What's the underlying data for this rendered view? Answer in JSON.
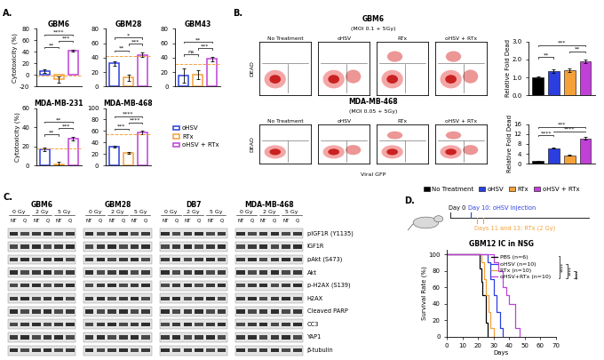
{
  "panel_labels": [
    "A.",
    "B.",
    "C.",
    "D."
  ],
  "chart_data": [
    {
      "type": "bar",
      "title": "GBM6",
      "ylabel": "Cytotoxicity (%)",
      "categories": [
        null,
        null,
        null
      ],
      "values": [
        7,
        -8,
        42
      ],
      "errors": [
        3,
        5,
        2
      ],
      "colors": [
        "#2b3fe0",
        "#f4a13a",
        "#c040d8"
      ],
      "ylim": [
        -20,
        80
      ],
      "yticks": [
        -20,
        0,
        20,
        40,
        60,
        80
      ],
      "reference_line": -1,
      "tick_labels": "y",
      "significance": [
        {
          "pair": [
            0,
            1
          ],
          "label": "**"
        },
        {
          "pair": [
            1,
            2
          ],
          "label": "***"
        },
        {
          "pair": [
            0,
            2
          ],
          "label": "****"
        }
      ]
    },
    {
      "type": "bar",
      "title": "GBM28",
      "categories": [
        null,
        null,
        null
      ],
      "values": [
        32,
        12,
        44
      ],
      "errors": [
        3,
        4,
        3
      ],
      "colors": [
        "#2b3fe0",
        "#f4a13a",
        "#c040d8"
      ],
      "ylim": [
        0,
        80
      ],
      "yticks": [
        0,
        20,
        40,
        60,
        80
      ],
      "reference_line": 42,
      "tick_labels": "y",
      "significance": [
        {
          "pair": [
            0,
            1
          ],
          "label": "**"
        },
        {
          "pair": [
            1,
            2
          ],
          "label": "***"
        },
        {
          "pair": [
            0,
            2
          ],
          "label": "*"
        }
      ]
    },
    {
      "type": "bar",
      "title": "GBM43",
      "categories": [
        null,
        null,
        null
      ],
      "values": [
        15,
        16,
        38
      ],
      "errors": [
        10,
        6,
        3
      ],
      "colors": [
        "#2b3fe0",
        "#f4a13a",
        "#c040d8"
      ],
      "ylim": [
        0,
        80
      ],
      "yticks": [
        0,
        20,
        40,
        60,
        80
      ],
      "reference_line": 31,
      "tick_labels": "y",
      "significance": [
        {
          "pair": [
            0,
            1
          ],
          "label": "ns"
        },
        {
          "pair": [
            1,
            2
          ],
          "label": "***"
        },
        {
          "pair": [
            0,
            2
          ],
          "label": "**"
        }
      ]
    },
    {
      "type": "bar",
      "title": "MDA-MB-231",
      "ylabel": "Cytotoxicity (%)",
      "categories": [
        null,
        null,
        null
      ],
      "values": [
        17,
        1,
        28
      ],
      "errors": [
        2,
        3,
        2
      ],
      "colors": [
        "#2b3fe0",
        "#f4a13a",
        "#c040d8"
      ],
      "ylim": [
        0,
        60
      ],
      "yticks": [
        0,
        20,
        40,
        60
      ],
      "reference_line": 18,
      "tick_labels": "y",
      "significance": [
        {
          "pair": [
            0,
            1
          ],
          "label": "**"
        },
        {
          "pair": [
            1,
            2
          ],
          "label": "***"
        },
        {
          "pair": [
            0,
            2
          ],
          "label": "**"
        }
      ]
    },
    {
      "type": "bar",
      "title": "MDA-MB-468",
      "categories": [
        null,
        null,
        null
      ],
      "values": [
        33,
        22,
        57
      ],
      "errors": [
        2,
        2,
        3
      ],
      "colors": [
        "#2b3fe0",
        "#f4a13a",
        "#c040d8"
      ],
      "ylim": [
        0,
        100
      ],
      "yticks": [
        0,
        20,
        40,
        60,
        80,
        100
      ],
      "reference_line": 55,
      "tick_labels": "y",
      "significance": [
        {
          "pair": [
            0,
            1
          ],
          "label": "***"
        },
        {
          "pair": [
            1,
            2
          ],
          "label": "****"
        },
        {
          "pair": [
            0,
            2
          ],
          "label": "****"
        }
      ]
    },
    {
      "type": "bar",
      "ylabel": "Relative Fold Dead",
      "categories": [
        null,
        null,
        null,
        null
      ],
      "values": [
        1.0,
        1.35,
        1.4,
        1.9
      ],
      "errors": [
        0.05,
        0.1,
        0.08,
        0.1
      ],
      "colors": [
        "#000000",
        "#2b3fe0",
        "#f4a13a",
        "#c040d8"
      ],
      "ylim": [
        0.0,
        3.0
      ],
      "yticks": [
        0.0,
        1.0,
        2.0,
        3.0
      ],
      "tick_labels": "y",
      "significance": [
        {
          "pair": [
            0,
            1
          ],
          "label": "**"
        },
        {
          "pair": [
            2,
            3
          ],
          "label": "**"
        },
        {
          "pair": [
            0,
            3
          ],
          "label": "***"
        }
      ]
    },
    {
      "type": "bar",
      "ylabel": "Relative Fold Dead",
      "categories": [
        null,
        null,
        null,
        null
      ],
      "values": [
        1.0,
        6.3,
        3.5,
        10.3
      ],
      "errors": [
        0.1,
        0.2,
        0.2,
        0.5
      ],
      "colors": [
        "#000000",
        "#2b3fe0",
        "#f4a13a",
        "#c040d8"
      ],
      "ylim": [
        0,
        16
      ],
      "yticks": [
        0,
        4,
        8,
        12,
        16
      ],
      "tick_labels": "y",
      "significance": [
        {
          "pair": [
            0,
            1
          ],
          "label": "****"
        },
        {
          "pair": [
            1,
            3
          ],
          "label": "****"
        },
        {
          "pair": [
            0,
            3
          ],
          "label": "***"
        }
      ]
    },
    {
      "type": "line",
      "line_style": "steps",
      "title": "GBM12 IC in NSG",
      "xlabel": "Days",
      "ylabel": "Survival Rate (%)",
      "xlim": [
        0,
        70
      ],
      "xticks": [
        0,
        10,
        20,
        30,
        40,
        50,
        60,
        70
      ],
      "ylim": [
        0,
        105
      ],
      "yticks": [
        0,
        20,
        40,
        60,
        80,
        100
      ],
      "legend": "upper right",
      "series": [
        {
          "name": "PBS (n=6)",
          "color": "#000000",
          "x": [
            0,
            21,
            22,
            23,
            25,
            26
          ],
          "values": [
            100,
            83.3,
            66.7,
            50,
            16.7,
            0
          ]
        },
        {
          "name": "oHSV (n=10)",
          "color": "#2b3fe0",
          "x": [
            0,
            26,
            28,
            30,
            32,
            34,
            36
          ],
          "values": [
            100,
            90,
            70,
            50,
            30,
            10,
            0
          ]
        },
        {
          "name": "RTx (n=10)",
          "color": "#f4a13a",
          "x": [
            0,
            22,
            24,
            25,
            27,
            28,
            30
          ],
          "values": [
            100,
            90,
            70,
            50,
            30,
            10,
            0
          ]
        },
        {
          "name": "oHSV+RTx (n=10)",
          "color": "#c040d8",
          "x": [
            0,
            30,
            33,
            36,
            38,
            40,
            44,
            47
          ],
          "values": [
            100,
            90,
            80,
            60,
            50,
            40,
            10,
            0
          ]
        }
      ],
      "significance": [
        {
          "pair": [
            0,
            3
          ],
          "label": "****"
        },
        {
          "pair": [
            1,
            3
          ],
          "label": "****"
        },
        {
          "pair": [
            2,
            3
          ],
          "label": "****"
        }
      ]
    }
  ],
  "legends": {
    "A": {
      "entries": [
        {
          "name": "oHSV",
          "color": "#2b3fe0"
        },
        {
          "name": "RTx",
          "color": "#f4a13a"
        },
        {
          "name": "oHSV + RTx",
          "color": "#c040d8"
        }
      ]
    },
    "B": {
      "entries": [
        {
          "name": "No Treatment",
          "color": "#000000"
        },
        {
          "name": "oHSV",
          "color": "#2b3fe0"
        },
        {
          "name": "RTx",
          "color": "#f4a13a"
        },
        {
          "name": "oHSV + RTx",
          "color": "#c040d8"
        }
      ]
    }
  },
  "flow_cytometry": {
    "y_label": "DEAD",
    "x_label": "Viral GFP",
    "columns": [
      "No Treatment",
      "oHSV",
      "RTx",
      "oHSV + RTx"
    ],
    "rows": [
      {
        "cell_line": "GBM6",
        "condition": "(MOI 0.1 + 5Gy)"
      },
      {
        "cell_line": "MDA-MB-468",
        "condition": "(MOI 0.05 + 5Gy)"
      }
    ]
  },
  "western_blot": {
    "cell_lines": [
      "GBM6",
      "GBM28",
      "DB7",
      "MDA-MB-468"
    ],
    "doses": [
      "0 Gy",
      "2 Gy",
      "5 Gy"
    ],
    "treatments": [
      "NT",
      "Q"
    ],
    "proteins": [
      "pIGF1R (Y1135)",
      "IGF1R",
      "pAkt (S473)",
      "Akt",
      "p-H2AX (S139)",
      "H2AX",
      "Cleaved PARP",
      "CC3",
      "YAP1",
      "β-tubulin"
    ]
  },
  "schematic": {
    "day0": "Day 0",
    "injection": "Day 10: oHSV Injection",
    "radiation": "Days 11 and 13: RTx (2 Gy)"
  }
}
